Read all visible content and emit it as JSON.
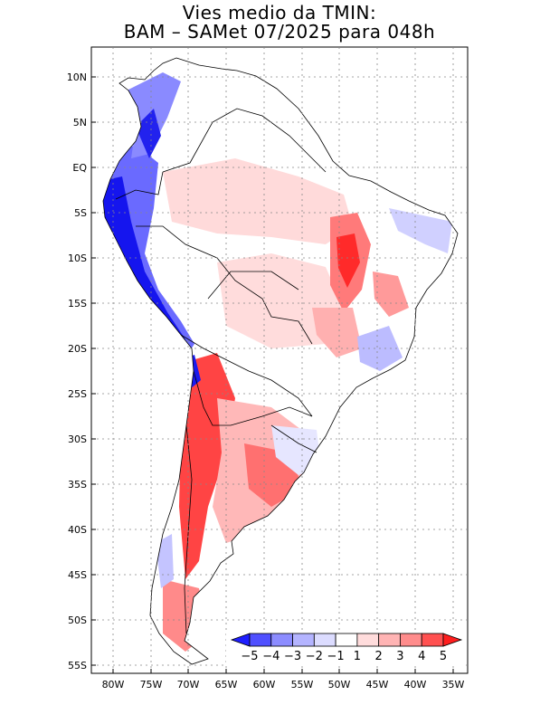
{
  "title": {
    "line1": "Vies medio da TMIN:",
    "line2": "BAM – SAMet 07/2025  para 048h"
  },
  "axes": {
    "lat_labels": [
      "10N",
      "5N",
      "EQ",
      "5S",
      "10S",
      "15S",
      "20S",
      "25S",
      "30S",
      "35S",
      "40S",
      "45S",
      "50S",
      "55S"
    ],
    "lon_labels": [
      "80W",
      "75W",
      "70W",
      "65W",
      "60W",
      "55W",
      "50W",
      "45W",
      "40W",
      "35W"
    ]
  },
  "colorbar": {
    "labels": [
      "-5",
      "-4",
      "-3",
      "-2",
      "-1",
      "1",
      "2",
      "3",
      "4",
      "5"
    ],
    "colors": [
      "#1e1eff",
      "#5050ff",
      "#8c8cff",
      "#b4b4ff",
      "#dcdcff",
      "#ffffff",
      "#ffdcdc",
      "#ffb4b4",
      "#ff8c8c",
      "#ff5050",
      "#ff1e1e"
    ]
  },
  "colors": {
    "strong_cold": "#1515ee",
    "cold": "#6a6aff",
    "weak_cold": "#c8c8ff",
    "weak_warm": "#ffd6d6",
    "warm": "#ff9c9c",
    "strong_warm": "#ff2a2a"
  }
}
